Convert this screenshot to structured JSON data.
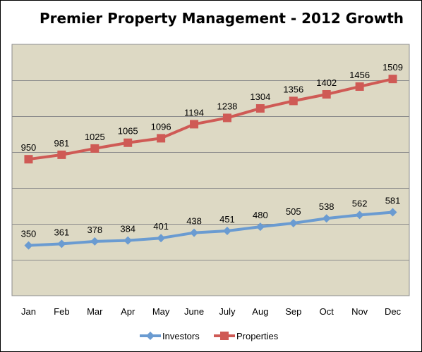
{
  "chart_data": {
    "type": "line",
    "title": "Premier Property Management - 2012 Growth",
    "xlabel": "",
    "ylabel": "",
    "categories": [
      "Jan",
      "Feb",
      "Mar",
      "Apr",
      "May",
      "June",
      "July",
      "Aug",
      "Sep",
      "Oct",
      "Nov",
      "Dec"
    ],
    "series": [
      {
        "name": "Investors",
        "color": "#6a9bd1",
        "marker": "diamond",
        "values": [
          350,
          361,
          378,
          384,
          401,
          438,
          451,
          480,
          505,
          538,
          562,
          581
        ]
      },
      {
        "name": "Properties",
        "color": "#cf5a55",
        "marker": "square",
        "values": [
          950,
          981,
          1025,
          1065,
          1096,
          1194,
          1238,
          1304,
          1356,
          1402,
          1456,
          1509
        ]
      }
    ],
    "ylim": [
      0,
      1750
    ],
    "y_gridline_step": 250,
    "y_axis_labels_visible": false,
    "grid": true,
    "legend": "bottom",
    "plot_background": "#ddd9c4",
    "data_labels": true
  }
}
